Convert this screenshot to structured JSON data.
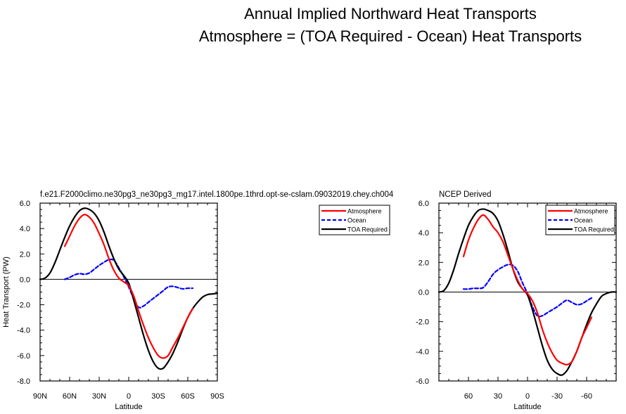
{
  "figure": {
    "title_line1": "Annual Implied Northward Heat Transports",
    "title_line2": "Atmosphere = (TOA Required - Ocean) Heat Transports"
  },
  "colors": {
    "atmosphere": "#ff0000",
    "ocean": "#0000ff",
    "toa": "#000000"
  },
  "chart_data": [
    {
      "type": "line",
      "title": "f.e21.F2000climo.ne30pg3_ne30pg3_mg17.intel.1800pe.1thrd.opt-se-cslam.09032019.chey.ch004",
      "xlabel": "Latitude",
      "ylabel": "Heat Transport (PW)",
      "xlim": [
        90,
        -90
      ],
      "ylim": [
        -8,
        6
      ],
      "xticks": [
        90,
        60,
        30,
        0,
        -30,
        -60,
        -90
      ],
      "xtick_labels": [
        "90N",
        "60N",
        "30N",
        "0",
        "30S",
        "60S",
        "90S"
      ],
      "yticks": [
        -8,
        -6,
        -4,
        -2,
        0,
        2,
        4,
        6
      ],
      "ytick_labels": [
        "-8.0",
        "-6.0",
        "-4.0",
        "-2.0",
        "0.0",
        "2.0",
        "4.0",
        "6.0"
      ],
      "legend": [
        "Atmosphere",
        "Ocean",
        "TOA Required"
      ],
      "legend_position": "top-right, outside",
      "series": [
        {
          "name": "TOA Required",
          "x": [
            90,
            85,
            80,
            75,
            70,
            65,
            60,
            55,
            50,
            45,
            40,
            35,
            30,
            25,
            20,
            15,
            10,
            5,
            0,
            -5,
            -10,
            -15,
            -20,
            -25,
            -30,
            -35,
            -40,
            -45,
            -50,
            -55,
            -60,
            -65,
            -70,
            -75,
            -80,
            -85,
            -90
          ],
          "y": [
            0,
            0.1,
            0.5,
            1.3,
            2.3,
            3.3,
            4.2,
            4.9,
            5.4,
            5.6,
            5.5,
            5.2,
            4.6,
            3.7,
            2.6,
            1.6,
            0.8,
            0.3,
            -0.3,
            -1.6,
            -3.0,
            -4.4,
            -5.6,
            -6.5,
            -7.0,
            -7.0,
            -6.5,
            -5.8,
            -4.9,
            -3.9,
            -3.0,
            -2.3,
            -1.8,
            -1.4,
            -1.2,
            -1.15,
            -1.1
          ]
        },
        {
          "name": "Atmosphere",
          "x": [
            65,
            60,
            55,
            50,
            45,
            40,
            35,
            30,
            25,
            20,
            15,
            10,
            5,
            0,
            -5,
            -10,
            -15,
            -20,
            -25,
            -30,
            -35,
            -40,
            -45,
            -50,
            -55,
            -60,
            -65
          ],
          "y": [
            2.6,
            3.4,
            4.2,
            4.8,
            5.1,
            4.9,
            4.4,
            3.6,
            2.7,
            1.6,
            0.7,
            0.1,
            -0.2,
            -0.5,
            -1.3,
            -2.5,
            -3.6,
            -4.6,
            -5.4,
            -6.0,
            -6.2,
            -6.0,
            -5.3,
            -4.6,
            -3.8,
            -3.0,
            -2.3
          ]
        },
        {
          "name": "Ocean",
          "x": [
            65,
            60,
            55,
            50,
            45,
            40,
            35,
            30,
            25,
            20,
            15,
            10,
            5,
            0,
            -5,
            -10,
            -15,
            -20,
            -25,
            -30,
            -35,
            -40,
            -45,
            -50,
            -55,
            -60,
            -65
          ],
          "y": [
            0,
            0.15,
            0.35,
            0.45,
            0.4,
            0.5,
            0.8,
            1.1,
            1.35,
            1.55,
            1.5,
            0.9,
            0.2,
            -0.6,
            -1.5,
            -2.2,
            -2.1,
            -1.8,
            -1.5,
            -1.2,
            -0.9,
            -0.6,
            -0.55,
            -0.65,
            -0.75,
            -0.7,
            -0.7
          ]
        }
      ]
    },
    {
      "type": "line",
      "title": "NCEP Derived",
      "xlabel": "Latitude",
      "ylabel": "",
      "xlim": [
        90,
        -90
      ],
      "ylim": [
        -6,
        6
      ],
      "xticks": [
        60,
        30,
        0,
        -30,
        -60
      ],
      "xtick_labels": [
        "60",
        "30",
        "0",
        "-30",
        "-60"
      ],
      "yticks": [
        -6,
        -4,
        -2,
        0,
        2,
        4,
        6
      ],
      "ytick_labels": [
        "-6.0",
        "-4.0",
        "-2.0",
        "0.0",
        "2.0",
        "4.0",
        "6.0"
      ],
      "legend": [
        "Atmosphere",
        "Ocean",
        "TOA Required"
      ],
      "legend_position": "top-right, inside",
      "series": [
        {
          "name": "TOA Required",
          "x": [
            90,
            85,
            80,
            75,
            70,
            65,
            60,
            55,
            50,
            45,
            40,
            35,
            30,
            25,
            20,
            15,
            10,
            5,
            0,
            -5,
            -10,
            -15,
            -20,
            -25,
            -30,
            -35,
            -40,
            -45,
            -50,
            -55,
            -60,
            -65,
            -70,
            -75,
            -80,
            -85,
            -90
          ],
          "y": [
            0,
            0.1,
            0.6,
            1.5,
            2.6,
            3.6,
            4.5,
            5.1,
            5.5,
            5.6,
            5.5,
            5.3,
            4.8,
            3.9,
            2.8,
            1.6,
            0.7,
            0.2,
            -0.2,
            -1.2,
            -2.4,
            -3.6,
            -4.6,
            -5.2,
            -5.5,
            -5.6,
            -5.3,
            -4.7,
            -4.0,
            -3.1,
            -2.2,
            -1.4,
            -0.8,
            -0.3,
            -0.1,
            0,
            0
          ]
        },
        {
          "name": "Atmosphere",
          "x": [
            65,
            60,
            55,
            50,
            45,
            40,
            35,
            30,
            25,
            20,
            15,
            10,
            5,
            0,
            -5,
            -10,
            -15,
            -20,
            -25,
            -30,
            -35,
            -40,
            -45,
            -50,
            -55,
            -60,
            -65
          ],
          "y": [
            2.4,
            3.5,
            4.3,
            4.9,
            5.2,
            4.9,
            4.4,
            4.0,
            3.4,
            2.5,
            1.6,
            0.8,
            0.2,
            -0.1,
            -0.6,
            -1.4,
            -2.5,
            -3.4,
            -4.1,
            -4.6,
            -4.8,
            -4.9,
            -4.7,
            -4.0,
            -3.1,
            -2.4,
            -1.7
          ]
        },
        {
          "name": "Ocean",
          "x": [
            65,
            60,
            55,
            50,
            45,
            40,
            35,
            30,
            25,
            20,
            15,
            10,
            5,
            0,
            -5,
            -10,
            -15,
            -20,
            -25,
            -30,
            -35,
            -40,
            -45,
            -50,
            -55,
            -60,
            -65
          ],
          "y": [
            0.2,
            0.2,
            0.25,
            0.25,
            0.3,
            0.7,
            1.2,
            1.5,
            1.7,
            1.85,
            1.8,
            1.4,
            0.6,
            -0.1,
            -1.0,
            -1.6,
            -1.6,
            -1.4,
            -1.2,
            -1.0,
            -0.75,
            -0.55,
            -0.7,
            -0.85,
            -0.8,
            -0.6,
            -0.4
          ]
        }
      ]
    }
  ]
}
